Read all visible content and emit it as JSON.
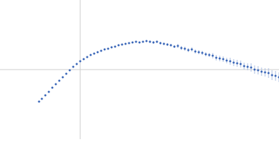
{
  "chart_data": {
    "type": "scatter",
    "xlim": [
      0,
      400
    ],
    "ylim": [
      0,
      200
    ],
    "reference_lines": {
      "x": 115,
      "y": 100,
      "color": "#cccccc"
    },
    "series": [
      {
        "color": "#3a66b8",
        "error_color": "#a9bde0",
        "x": [
          56,
          60,
          65,
          70,
          75,
          80,
          85,
          90,
          95,
          100,
          105,
          110,
          115,
          120,
          125,
          130,
          135,
          140,
          145,
          150,
          155,
          160,
          165,
          170,
          175,
          180,
          185,
          190,
          195,
          200,
          205,
          210,
          215,
          220,
          225,
          230,
          235,
          240,
          245,
          250,
          255,
          260,
          265,
          270,
          275,
          280,
          285,
          290,
          295,
          300,
          305,
          310,
          315,
          320,
          325,
          330,
          335,
          340,
          345,
          350,
          355,
          360,
          365,
          370,
          375,
          380,
          385,
          390,
          395,
          400
        ],
        "values": [
          54,
          58,
          63,
          68,
          74,
          79,
          84,
          89,
          94,
          99,
          104,
          108,
          112,
          115,
          118,
          121,
          123,
          125,
          127,
          129,
          130,
          132,
          133,
          135,
          136,
          137,
          138,
          139,
          140,
          139,
          140,
          141,
          140,
          139,
          140,
          138,
          137,
          136,
          135,
          133,
          134,
          131,
          130,
          128,
          129,
          126,
          125,
          124,
          122,
          121,
          120,
          117,
          116,
          115,
          113,
          112,
          110,
          109,
          108,
          105,
          104,
          103,
          100,
          99,
          97,
          96,
          95,
          92,
          91,
          89
        ],
        "errors": [
          0.5,
          0.5,
          0.5,
          0.5,
          0.5,
          0.5,
          0.5,
          0.5,
          0.5,
          0.5,
          0.5,
          0.5,
          0.5,
          0.5,
          0.5,
          0.5,
          0.5,
          0.5,
          0.5,
          0.5,
          1,
          1,
          1,
          1,
          1,
          1,
          1,
          1,
          1.5,
          1.5,
          1.5,
          1.5,
          2,
          2,
          2,
          2,
          2,
          2,
          2,
          2,
          3,
          3,
          3,
          3,
          3,
          3,
          3,
          3,
          3,
          3,
          4,
          4,
          4,
          4,
          4,
          5,
          5,
          5,
          5,
          5,
          5,
          6,
          6,
          6,
          6,
          6,
          7,
          7,
          7,
          7
        ]
      }
    ]
  }
}
